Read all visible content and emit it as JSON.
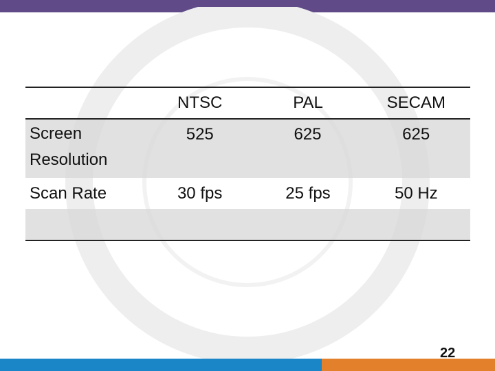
{
  "table": {
    "columns": [
      "NTSC",
      "PAL",
      "SECAM"
    ],
    "rows": [
      {
        "label": "Screen Resolution",
        "cells": [
          "525",
          "625",
          "625"
        ]
      },
      {
        "label": "Scan Rate",
        "cells": [
          "30 fps",
          "25 fps",
          "50 Hz"
        ]
      }
    ]
  },
  "page_number": "22"
}
